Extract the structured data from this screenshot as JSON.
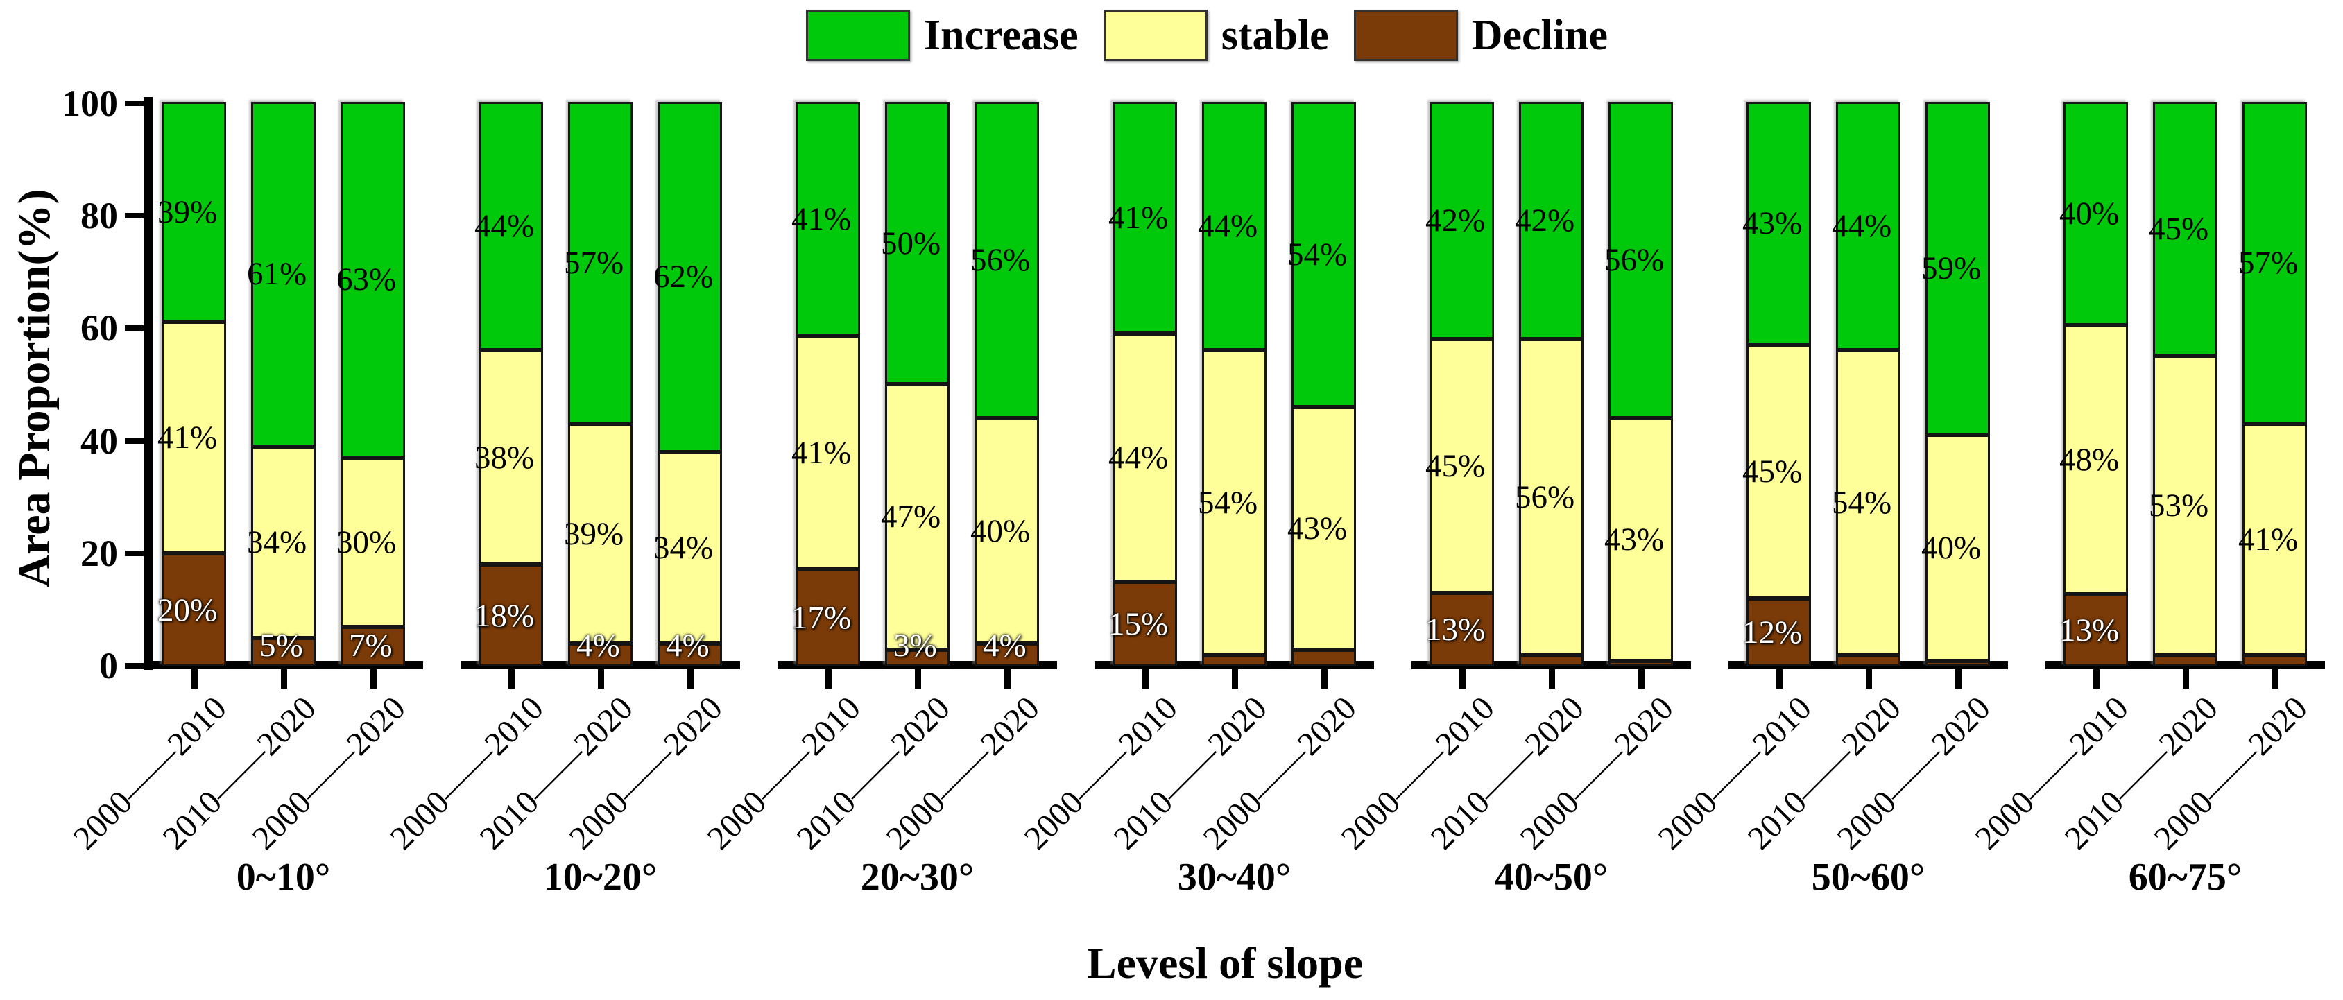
{
  "legend": {
    "items": [
      {
        "label": "Increase",
        "color": "#00C80A"
      },
      {
        "label": "stable",
        "color": "#FFFF99"
      },
      {
        "label": "Decline",
        "color": "#7B3B08"
      }
    ]
  },
  "y_axis": {
    "title": "Area Proportion(%)",
    "tick_labels": [
      "0",
      "20",
      "40",
      "60",
      "80",
      "100"
    ],
    "min": 0,
    "max": 100
  },
  "x_axis": {
    "title": "Levesl of slope",
    "period_labels": [
      "2000——2010",
      "2010——2020",
      "2000——2020"
    ]
  },
  "chart_data": {
    "type": "bar",
    "stacked": true,
    "title": "",
    "xlabel": "Levesl of slope",
    "ylabel": "Area Proportion(%)",
    "ylim": [
      0,
      100
    ],
    "grid": false,
    "legend_position": "top-center",
    "series_names": [
      "Decline",
      "stable",
      "Increase"
    ],
    "colors": {
      "Increase": "#00C80A",
      "stable": "#FFFF99",
      "Decline": "#7B3B08"
    },
    "periods": [
      "2000——2010",
      "2010——2020",
      "2000——2020"
    ],
    "groups": [
      {
        "label": "0~10°",
        "bars": [
          {
            "period": "2000——2010",
            "Decline": 20,
            "stable": 41,
            "Increase": 39,
            "labels": {
              "Decline": "20%",
              "stable": "41%",
              "Increase": "39%"
            }
          },
          {
            "period": "2010——2020",
            "Decline": 5,
            "stable": 34,
            "Increase": 61,
            "labels": {
              "Decline": "5%",
              "stable": "34%",
              "Increase": "61%"
            }
          },
          {
            "period": "2000——2020",
            "Decline": 7,
            "stable": 30,
            "Increase": 63,
            "labels": {
              "Decline": "7%",
              "stable": "30%",
              "Increase": "63%"
            }
          }
        ]
      },
      {
        "label": "10~20°",
        "bars": [
          {
            "period": "2000——2010",
            "Decline": 18,
            "stable": 38,
            "Increase": 44,
            "labels": {
              "Decline": "18%",
              "stable": "38%",
              "Increase": "44%"
            }
          },
          {
            "period": "2010——2020",
            "Decline": 4,
            "stable": 39,
            "Increase": 57,
            "labels": {
              "Decline": "4%",
              "stable": "39%",
              "Increase": "57%"
            }
          },
          {
            "period": "2000——2020",
            "Decline": 4,
            "stable": 34,
            "Increase": 62,
            "labels": {
              "Decline": "4%",
              "stable": "34%",
              "Increase": "62%"
            }
          }
        ]
      },
      {
        "label": "20~30°",
        "bars": [
          {
            "period": "2000——2010",
            "Decline": 17,
            "stable": 41,
            "Increase": 41,
            "labels": {
              "Decline": "17%",
              "stable": "41%",
              "Increase": "41%"
            }
          },
          {
            "period": "2010——2020",
            "Decline": 3,
            "stable": 47,
            "Increase": 50,
            "labels": {
              "Decline": "3%",
              "stable": "47%",
              "Increase": "50%"
            }
          },
          {
            "period": "2000——2020",
            "Decline": 4,
            "stable": 40,
            "Increase": 56,
            "labels": {
              "Decline": "4%",
              "stable": "40%",
              "Increase": "56%"
            }
          }
        ]
      },
      {
        "label": "30~40°",
        "bars": [
          {
            "period": "2000——2010",
            "Decline": 15,
            "stable": 44,
            "Increase": 41,
            "labels": {
              "Decline": "15%",
              "stable": "44%",
              "Increase": "41%"
            }
          },
          {
            "period": "2010——2020",
            "Decline": 2,
            "stable": 54,
            "Increase": 44,
            "labels": {
              "Decline": "",
              "stable": "54%",
              "Increase": "44%"
            }
          },
          {
            "period": "2000——2020",
            "Decline": 3,
            "stable": 43,
            "Increase": 54,
            "labels": {
              "Decline": "",
              "stable": "43%",
              "Increase": "54%"
            }
          }
        ]
      },
      {
        "label": "40~50°",
        "bars": [
          {
            "period": "2000——2010",
            "Decline": 13,
            "stable": 45,
            "Increase": 42,
            "labels": {
              "Decline": "13%",
              "stable": "45%",
              "Increase": "42%"
            }
          },
          {
            "period": "2010——2020",
            "Decline": 2,
            "stable": 56,
            "Increase": 42,
            "labels": {
              "Decline": "",
              "stable": "56%",
              "Increase": "42%"
            }
          },
          {
            "period": "2000——2020",
            "Decline": 1,
            "stable": 43,
            "Increase": 56,
            "labels": {
              "Decline": "",
              "stable": "43%",
              "Increase": "56%"
            }
          }
        ]
      },
      {
        "label": "50~60°",
        "bars": [
          {
            "period": "2000——2010",
            "Decline": 12,
            "stable": 45,
            "Increase": 43,
            "labels": {
              "Decline": "12%",
              "stable": "45%",
              "Increase": "43%"
            }
          },
          {
            "period": "2010——2020",
            "Decline": 2,
            "stable": 54,
            "Increase": 44,
            "labels": {
              "Decline": "",
              "stable": "54%",
              "Increase": "44%"
            }
          },
          {
            "period": "2000——2020",
            "Decline": 1,
            "stable": 40,
            "Increase": 59,
            "labels": {
              "Decline": "",
              "stable": "40%",
              "Increase": "59%"
            }
          }
        ]
      },
      {
        "label": "60~75°",
        "bars": [
          {
            "period": "2000——2010",
            "Decline": 13,
            "stable": 48,
            "Increase": 40,
            "labels": {
              "Decline": "13%",
              "stable": "48%",
              "Increase": "40%"
            }
          },
          {
            "period": "2010——2020",
            "Decline": 2,
            "stable": 53,
            "Increase": 45,
            "labels": {
              "Decline": "",
              "stable": "53%",
              "Increase": "45%"
            }
          },
          {
            "period": "2000——2020",
            "Decline": 2,
            "stable": 41,
            "Increase": 57,
            "labels": {
              "Decline": "",
              "stable": "41%",
              "Increase": "57%"
            }
          }
        ]
      }
    ]
  }
}
